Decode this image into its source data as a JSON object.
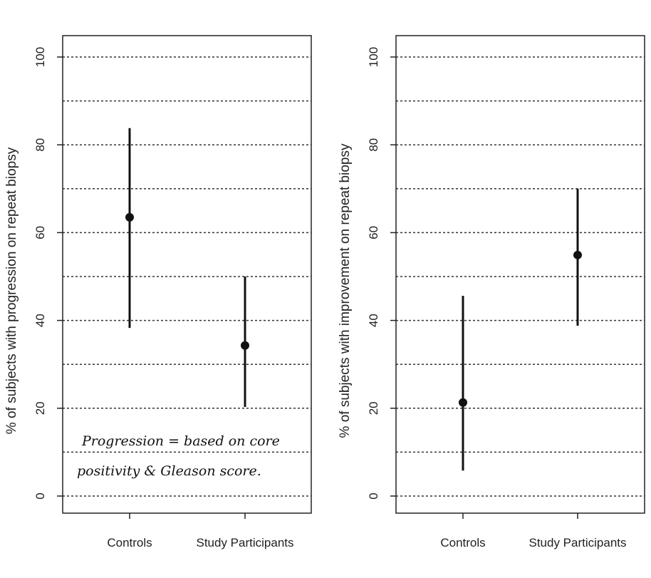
{
  "chart_data": [
    {
      "type": "scatter",
      "subtype": "point-with-error-bars",
      "categories": [
        "Controls",
        "Study Participants"
      ],
      "values": [
        63.5,
        34.3
      ],
      "lower": [
        38.3,
        20.3
      ],
      "upper": [
        83.8,
        50.0
      ],
      "xlabel": "",
      "ylabel": "% of subjects with progression on repeat biopsy",
      "ylim": [
        0,
        100
      ],
      "yticks": [
        "0",
        "20",
        "40",
        "60",
        "80",
        "100"
      ],
      "grid": "horizontal dotted every 10",
      "annotation": [
        "Progression = based on core",
        "positivity & Gleason score."
      ]
    },
    {
      "type": "scatter",
      "subtype": "point-with-error-bars",
      "categories": [
        "Controls",
        "Study Participants"
      ],
      "values": [
        21.3,
        54.9
      ],
      "lower": [
        5.8,
        38.8
      ],
      "upper": [
        45.6,
        70.0
      ],
      "xlabel": "",
      "ylabel": "% of subjects with improvement on repeat biopsy",
      "ylim": [
        0,
        100
      ],
      "yticks": [
        "0",
        "20",
        "40",
        "60",
        "80",
        "100"
      ],
      "grid": "horizontal dotted every 10"
    }
  ]
}
